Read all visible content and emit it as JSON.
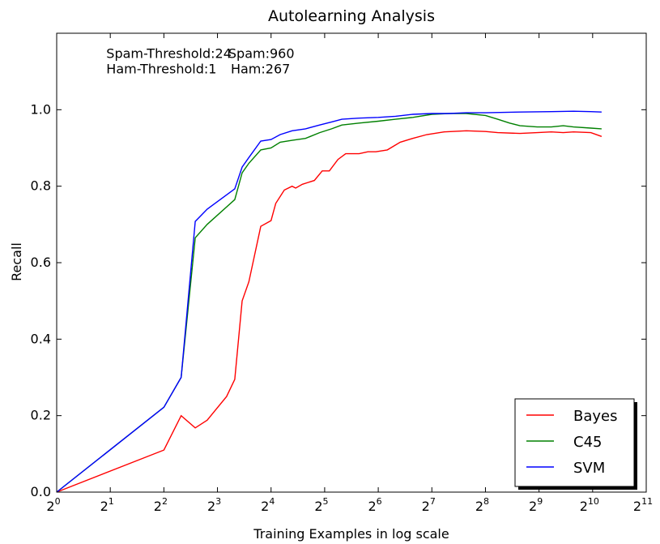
{
  "chart_data": {
    "type": "line",
    "title": "Autolearning Analysis",
    "xlabel": "Training Examples in log scale",
    "ylabel": "Recall",
    "x_scale": "log2",
    "xlim": [
      1,
      2048
    ],
    "ylim": [
      0.0,
      1.2
    ],
    "x_ticks": [
      {
        "base": "2",
        "exp": "0",
        "value": 1
      },
      {
        "base": "2",
        "exp": "1",
        "value": 2
      },
      {
        "base": "2",
        "exp": "2",
        "value": 4
      },
      {
        "base": "2",
        "exp": "3",
        "value": 8
      },
      {
        "base": "2",
        "exp": "4",
        "value": 16
      },
      {
        "base": "2",
        "exp": "5",
        "value": 32
      },
      {
        "base": "2",
        "exp": "6",
        "value": 64
      },
      {
        "base": "2",
        "exp": "7",
        "value": 128
      },
      {
        "base": "2",
        "exp": "8",
        "value": 256
      },
      {
        "base": "2",
        "exp": "9",
        "value": 512
      },
      {
        "base": "2",
        "exp": "10",
        "value": 1024
      },
      {
        "base": "2",
        "exp": "11",
        "value": 2048
      }
    ],
    "y_ticks": [
      "0.0",
      "0.2",
      "0.4",
      "0.6",
      "0.8",
      "1.0"
    ],
    "annotations": [
      {
        "text": "Spam-Threshold:24",
        "x": 1.9,
        "y": 1.135
      },
      {
        "text": "Spam:960",
        "x": 9.2,
        "y": 1.135
      },
      {
        "text": "Ham-Threshold:1",
        "x": 1.9,
        "y": 1.095
      },
      {
        "text": "Ham:267",
        "x": 9.5,
        "y": 1.095
      }
    ],
    "legend_position": "lower-right",
    "grid": false,
    "series": [
      {
        "name": "Bayes",
        "color": "#ff0000",
        "points": [
          [
            1,
            0.0
          ],
          [
            4,
            0.11
          ],
          [
            5,
            0.2
          ],
          [
            6,
            0.168
          ],
          [
            7,
            0.188
          ],
          [
            9,
            0.25
          ],
          [
            10,
            0.295
          ],
          [
            11,
            0.5
          ],
          [
            12,
            0.55
          ],
          [
            14,
            0.695
          ],
          [
            16,
            0.71
          ],
          [
            17,
            0.755
          ],
          [
            19,
            0.79
          ],
          [
            21,
            0.8
          ],
          [
            22,
            0.795
          ],
          [
            24,
            0.805
          ],
          [
            28,
            0.815
          ],
          [
            31,
            0.84
          ],
          [
            34,
            0.84
          ],
          [
            38,
            0.87
          ],
          [
            42,
            0.885
          ],
          [
            50,
            0.885
          ],
          [
            56,
            0.89
          ],
          [
            62,
            0.89
          ],
          [
            72,
            0.895
          ],
          [
            85,
            0.915
          ],
          [
            100,
            0.925
          ],
          [
            120,
            0.935
          ],
          [
            150,
            0.942
          ],
          [
            200,
            0.945
          ],
          [
            256,
            0.943
          ],
          [
            300,
            0.94
          ],
          [
            400,
            0.938
          ],
          [
            500,
            0.94
          ],
          [
            600,
            0.942
          ],
          [
            700,
            0.94
          ],
          [
            800,
            0.942
          ],
          [
            1000,
            0.94
          ],
          [
            1150,
            0.93
          ]
        ]
      },
      {
        "name": "C45",
        "color": "#008000",
        "points": [
          [
            1,
            0.0
          ],
          [
            4,
            0.222
          ],
          [
            5,
            0.3
          ],
          [
            6,
            0.665
          ],
          [
            7,
            0.7
          ],
          [
            10,
            0.765
          ],
          [
            11,
            0.835
          ],
          [
            12,
            0.86
          ],
          [
            14,
            0.895
          ],
          [
            16,
            0.9
          ],
          [
            18,
            0.915
          ],
          [
            21,
            0.92
          ],
          [
            25,
            0.925
          ],
          [
            30,
            0.94
          ],
          [
            35,
            0.95
          ],
          [
            40,
            0.96
          ],
          [
            50,
            0.965
          ],
          [
            64,
            0.97
          ],
          [
            80,
            0.975
          ],
          [
            100,
            0.98
          ],
          [
            128,
            0.988
          ],
          [
            160,
            0.99
          ],
          [
            200,
            0.99
          ],
          [
            256,
            0.985
          ],
          [
            300,
            0.975
          ],
          [
            350,
            0.965
          ],
          [
            400,
            0.958
          ],
          [
            500,
            0.955
          ],
          [
            600,
            0.955
          ],
          [
            700,
            0.958
          ],
          [
            800,
            0.955
          ],
          [
            1000,
            0.952
          ],
          [
            1150,
            0.95
          ]
        ]
      },
      {
        "name": "SVM",
        "color": "#0000ff",
        "points": [
          [
            1,
            0.0
          ],
          [
            4,
            0.222
          ],
          [
            5,
            0.3
          ],
          [
            6,
            0.708
          ],
          [
            7,
            0.74
          ],
          [
            10,
            0.793
          ],
          [
            11,
            0.85
          ],
          [
            12,
            0.875
          ],
          [
            14,
            0.918
          ],
          [
            16,
            0.922
          ],
          [
            18,
            0.935
          ],
          [
            21,
            0.945
          ],
          [
            25,
            0.95
          ],
          [
            30,
            0.96
          ],
          [
            35,
            0.968
          ],
          [
            40,
            0.975
          ],
          [
            50,
            0.978
          ],
          [
            64,
            0.98
          ],
          [
            80,
            0.983
          ],
          [
            100,
            0.988
          ],
          [
            128,
            0.99
          ],
          [
            160,
            0.99
          ],
          [
            200,
            0.992
          ],
          [
            256,
            0.992
          ],
          [
            400,
            0.994
          ],
          [
            600,
            0.995
          ],
          [
            800,
            0.996
          ],
          [
            1000,
            0.995
          ],
          [
            1150,
            0.994
          ]
        ]
      }
    ]
  }
}
